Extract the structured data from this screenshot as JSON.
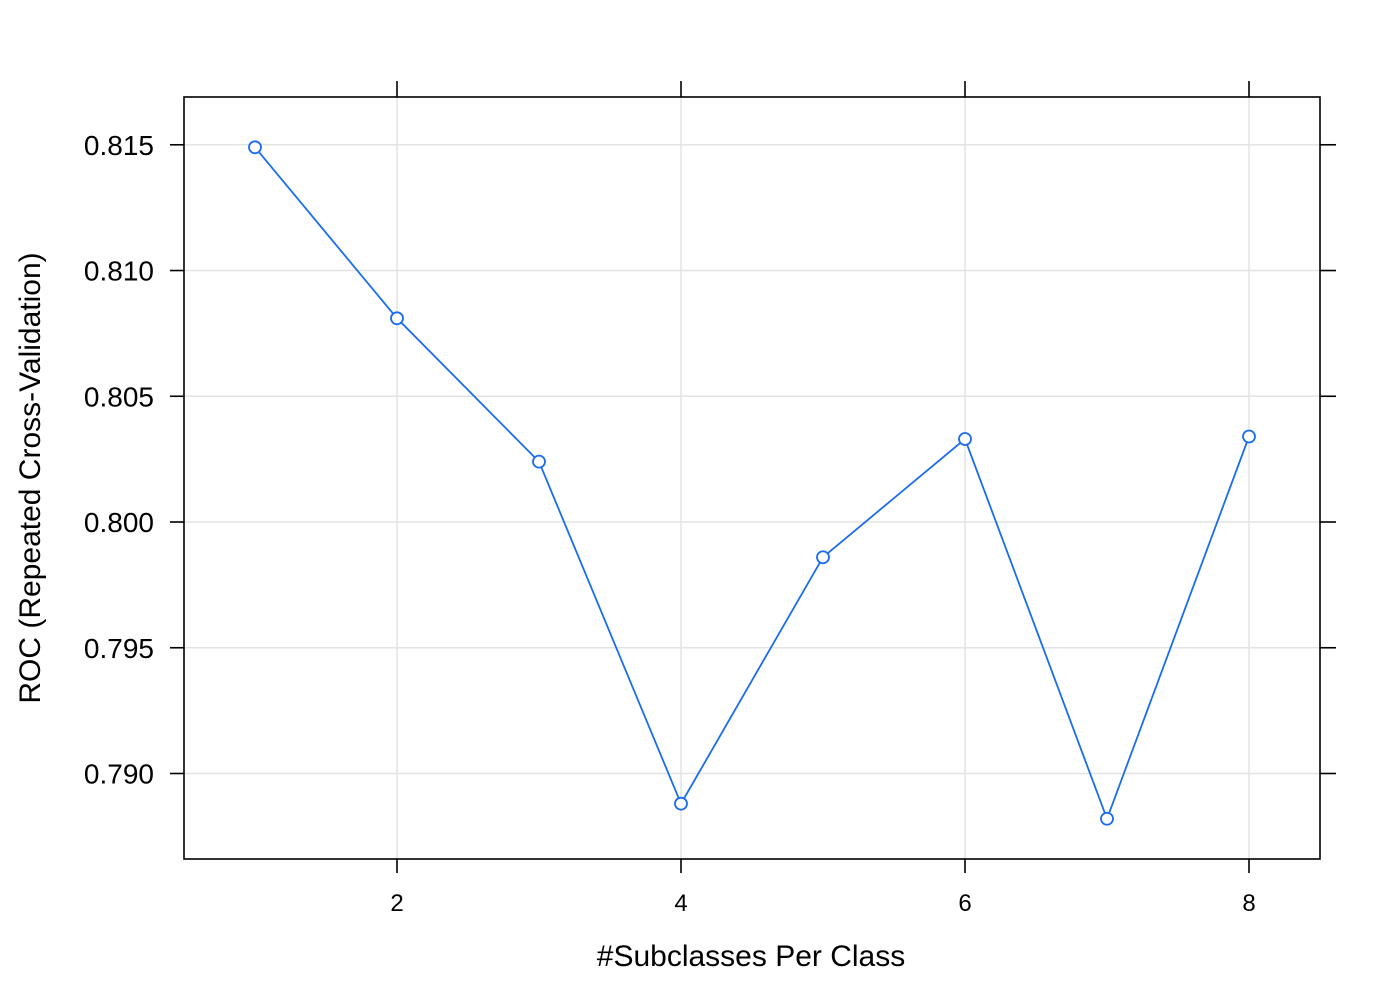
{
  "chart_data": {
    "type": "line",
    "title": "",
    "xlabel": "#Subclasses Per Class",
    "ylabel": "ROC (Repeated Cross-Validation)",
    "xlim": [
      0.5,
      8.5
    ],
    "ylim": [
      0.7866,
      0.8169
    ],
    "x_ticks": [
      2,
      4,
      6,
      8
    ],
    "x_tick_labels": [
      "2",
      "4",
      "6",
      "8"
    ],
    "y_ticks": [
      0.79,
      0.795,
      0.8,
      0.805,
      0.81,
      0.815
    ],
    "y_tick_labels": [
      "0.790",
      "0.795",
      "0.800",
      "0.805",
      "0.810",
      "0.815"
    ],
    "grid": true,
    "legend": "none",
    "series": [
      {
        "color": "#1a6cf0",
        "marker": "open-circle",
        "x": [
          1,
          2,
          3,
          4,
          5,
          6,
          7,
          8
        ],
        "y": [
          0.8149,
          0.8081,
          0.8024,
          0.7888,
          0.7986,
          0.8033,
          0.7882,
          0.8034
        ]
      }
    ],
    "colors": {
      "grid": "#e3e3e3",
      "frame": "#000000",
      "line": "#1a6cf0"
    }
  }
}
